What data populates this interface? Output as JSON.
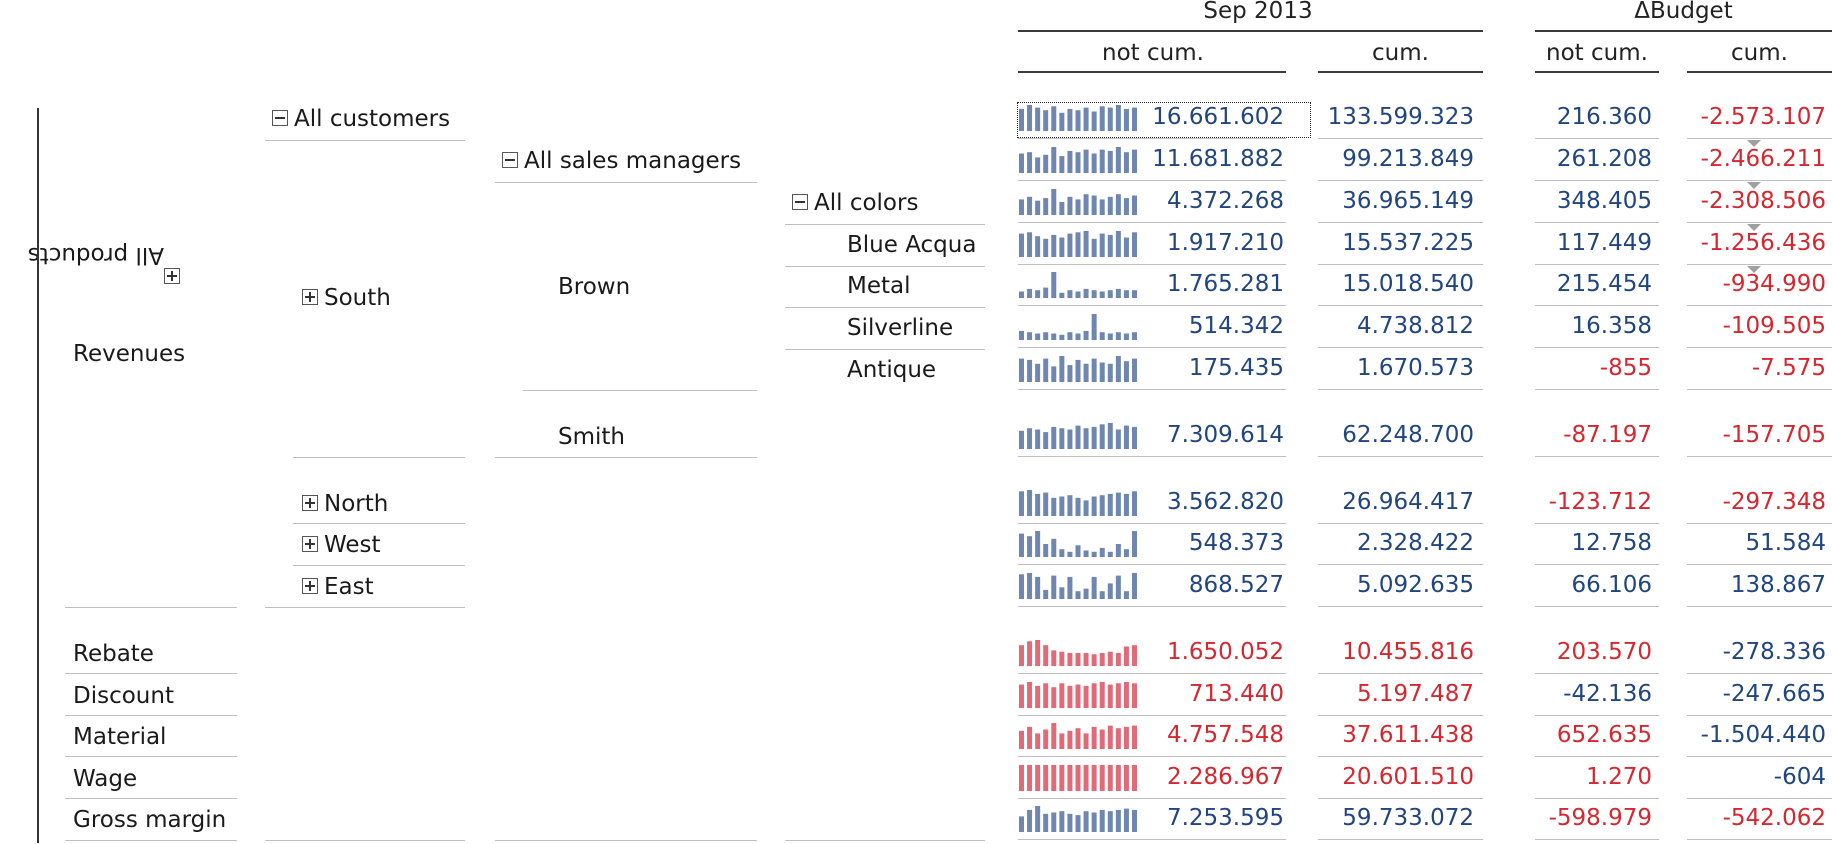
{
  "header": {
    "period": "Sep 2013",
    "delta": "ΔBudget",
    "col_not_cum": "not cum.",
    "col_cum": "cum.",
    "col_delta_not_cum": "not cum.",
    "col_delta_cum": "cum."
  },
  "axis": {
    "all_products": "All products"
  },
  "tree": {
    "revenues": "Revenues",
    "all_customers": "All customers",
    "all_sales_managers": "All sales managers",
    "all_colors": "All colors",
    "south": "South",
    "brown": "Brown",
    "blue_acqua": "Blue Acqua",
    "metal": "Metal",
    "silverline": "Silverline",
    "antique": "Antique",
    "smith": "Smith",
    "north": "North",
    "west": "West",
    "east": "East",
    "rebate": "Rebate",
    "discount": "Discount",
    "material": "Material",
    "wage": "Wage",
    "gross_margin": "Gross margin"
  },
  "colors": {
    "blue": "#6e86b0",
    "red": "#e06a78",
    "text_blue": "#20457f",
    "text_red": "#d6262f"
  },
  "rows": [
    {
      "key": "all_customers",
      "not_cum": "16.661.602",
      "cum": "133.599.323",
      "d_not_cum": "216.360",
      "d_cum": "-2.573.107",
      "spark": [
        0.85,
        1,
        0.9,
        0.8,
        0.95,
        0.7,
        0.85,
        0.8,
        0.9,
        0.75,
        0.95,
        0.9,
        1,
        0.85,
        0.9
      ],
      "spark_color": "blue",
      "num_color": "blue",
      "d1_color": "blue",
      "d2_color": "red"
    },
    {
      "key": "all_sales_managers",
      "not_cum": "11.681.882",
      "cum": "99.213.849",
      "d_not_cum": "261.208",
      "d_cum": "-2.466.211",
      "spark": [
        0.75,
        0.8,
        0.6,
        0.7,
        1,
        0.65,
        0.85,
        0.8,
        0.9,
        0.75,
        0.9,
        0.85,
        1,
        0.8,
        0.9
      ],
      "spark_color": "blue",
      "num_color": "blue",
      "d1_color": "blue",
      "d2_color": "red"
    },
    {
      "key": "all_colors",
      "not_cum": "4.372.268",
      "cum": "36.965.149",
      "d_not_cum": "348.405",
      "d_cum": "-2.308.506",
      "spark": [
        0.6,
        0.7,
        0.55,
        0.65,
        1,
        0.5,
        0.7,
        0.6,
        0.8,
        0.75,
        0.6,
        0.7,
        0.8,
        0.65,
        0.75
      ],
      "spark_color": "blue",
      "num_color": "blue",
      "d1_color": "blue",
      "d2_color": "red"
    },
    {
      "key": "blue_acqua",
      "not_cum": "1.917.210",
      "cum": "15.537.225",
      "d_not_cum": "117.449",
      "d_cum": "-1.256.436",
      "spark": [
        0.9,
        0.95,
        0.8,
        0.7,
        0.85,
        0.75,
        0.9,
        0.95,
        1,
        0.7,
        0.9,
        0.85,
        1,
        0.75,
        0.95
      ],
      "spark_color": "blue",
      "num_color": "blue",
      "d1_color": "blue",
      "d2_color": "red"
    },
    {
      "key": "metal",
      "not_cum": "1.765.281",
      "cum": "15.018.540",
      "d_not_cum": "215.454",
      "d_cum": "-934.990",
      "spark": [
        0.25,
        0.35,
        0.3,
        0.4,
        1,
        0.2,
        0.3,
        0.25,
        0.35,
        0.3,
        0.25,
        0.3,
        0.35,
        0.3,
        0.3
      ],
      "spark_color": "blue",
      "num_color": "blue",
      "d1_color": "blue",
      "d2_color": "red"
    },
    {
      "key": "silverline",
      "not_cum": "514.342",
      "cum": "4.738.812",
      "d_not_cum": "16.358",
      "d_cum": "-109.505",
      "spark": [
        0.35,
        0.3,
        0.25,
        0.3,
        0.25,
        0.2,
        0.3,
        0.25,
        0.35,
        1,
        0.3,
        0.25,
        0.3,
        0.25,
        0.3
      ],
      "spark_color": "blue",
      "num_color": "blue",
      "d1_color": "blue",
      "d2_color": "red"
    },
    {
      "key": "antique",
      "not_cum": "175.435",
      "cum": "1.670.573",
      "d_not_cum": "-855",
      "d_cum": "-7.575",
      "spark": [
        0.9,
        0.85,
        0.7,
        0.9,
        0.6,
        1,
        0.65,
        0.85,
        0.7,
        0.9,
        0.75,
        0.7,
        1,
        0.8,
        0.9
      ],
      "spark_color": "blue",
      "num_color": "blue",
      "d1_color": "red",
      "d2_color": "red"
    },
    {
      "key": "smith",
      "not_cum": "7.309.614",
      "cum": "62.248.700",
      "d_not_cum": "-87.197",
      "d_cum": "-157.705",
      "spark": [
        0.7,
        0.8,
        0.75,
        0.65,
        0.85,
        0.8,
        0.75,
        0.9,
        0.8,
        0.85,
        0.95,
        1,
        0.75,
        0.9,
        0.85
      ],
      "spark_color": "blue",
      "num_color": "blue",
      "d1_color": "red",
      "d2_color": "red"
    },
    {
      "key": "north",
      "not_cum": "3.562.820",
      "cum": "26.964.417",
      "d_not_cum": "-123.712",
      "d_cum": "-297.348",
      "spark": [
        0.95,
        1,
        0.85,
        0.9,
        0.7,
        0.75,
        0.8,
        0.7,
        0.6,
        0.75,
        0.8,
        0.85,
        0.9,
        0.85,
        0.95
      ],
      "spark_color": "blue",
      "num_color": "blue",
      "d1_color": "red",
      "d2_color": "red"
    },
    {
      "key": "west",
      "not_cum": "548.373",
      "cum": "2.328.422",
      "d_not_cum": "12.758",
      "d_cum": "51.584",
      "spark": [
        0.9,
        0.8,
        1,
        0.5,
        0.7,
        0.3,
        0.2,
        0.45,
        0.25,
        0.2,
        0.35,
        0.2,
        0.5,
        0.3,
        1
      ],
      "spark_color": "blue",
      "num_color": "blue",
      "d1_color": "blue",
      "d2_color": "blue"
    },
    {
      "key": "east",
      "not_cum": "868.527",
      "cum": "5.092.635",
      "d_not_cum": "66.106",
      "d_cum": "138.867",
      "spark": [
        0.95,
        1,
        0.85,
        0.35,
        0.9,
        0.45,
        0.85,
        0.3,
        0.4,
        0.85,
        0.3,
        0.6,
        0.9,
        0.3,
        1
      ],
      "spark_color": "blue",
      "num_color": "blue",
      "d1_color": "blue",
      "d2_color": "blue"
    },
    {
      "key": "rebate",
      "not_cum": "1.650.052",
      "cum": "10.455.816",
      "d_not_cum": "203.570",
      "d_cum": "-278.336",
      "spark": [
        0.8,
        0.95,
        1,
        0.8,
        0.6,
        0.55,
        0.5,
        0.5,
        0.5,
        0.45,
        0.5,
        0.55,
        0.5,
        0.75,
        0.8
      ],
      "spark_color": "red",
      "num_color": "red",
      "d1_color": "red",
      "d2_color": "blue"
    },
    {
      "key": "discount",
      "not_cum": "713.440",
      "cum": "5.197.487",
      "d_not_cum": "-42.136",
      "d_cum": "-247.665",
      "spark": [
        0.9,
        1,
        0.85,
        0.95,
        0.8,
        0.95,
        0.85,
        0.9,
        0.85,
        0.95,
        1,
        0.9,
        0.95,
        1,
        0.95
      ],
      "spark_color": "red",
      "num_color": "red",
      "d1_color": "blue",
      "d2_color": "blue"
    },
    {
      "key": "material",
      "not_cum": "4.757.548",
      "cum": "37.611.438",
      "d_not_cum": "652.635",
      "d_cum": "-1.504.440",
      "spark": [
        0.7,
        0.85,
        0.6,
        0.75,
        1,
        0.6,
        0.7,
        0.8,
        0.6,
        0.85,
        0.75,
        0.9,
        0.8,
        0.85,
        0.9
      ],
      "spark_color": "red",
      "num_color": "red",
      "d1_color": "red",
      "d2_color": "blue"
    },
    {
      "key": "wage",
      "not_cum": "2.286.967",
      "cum": "20.601.510",
      "d_not_cum": "1.270",
      "d_cum": "-604",
      "spark": [
        1,
        1,
        1,
        1,
        1,
        1,
        1,
        1,
        1,
        1,
        1,
        1,
        1,
        1,
        1
      ],
      "spark_color": "red",
      "num_color": "red",
      "d1_color": "red",
      "d2_color": "blue"
    },
    {
      "key": "gross_margin",
      "not_cum": "7.253.595",
      "cum": "59.733.072",
      "d_not_cum": "-598.979",
      "d_cum": "-542.062",
      "spark": [
        0.6,
        0.85,
        1,
        0.7,
        0.75,
        0.8,
        0.7,
        0.65,
        0.8,
        0.75,
        0.85,
        0.8,
        0.85,
        0.9,
        0.85
      ],
      "spark_color": "blue",
      "num_color": "blue",
      "d1_color": "red",
      "d2_color": "red"
    }
  ]
}
